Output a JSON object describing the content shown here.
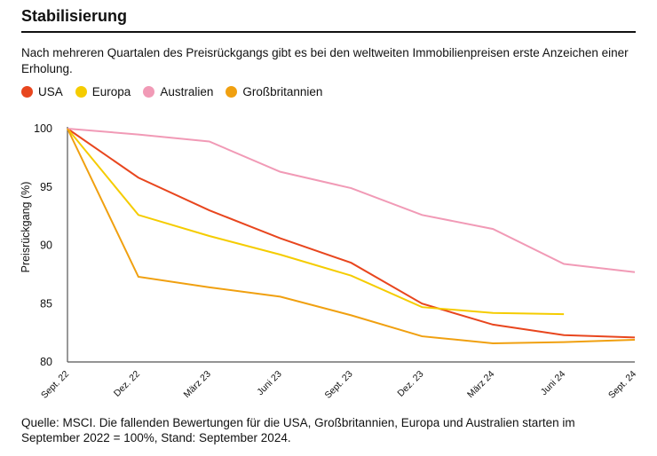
{
  "title": "Stabilisierung",
  "subtitle": "Nach mehreren Quartalen des Preisrückgangs gibt es bei den weltweiten Immobilienpreisen erste Anzeichen einer Erholung.",
  "source": "Quelle: MSCI. Die fallenden Bewertungen für die USA, Großbritannien, Europa und Australien starten im September 2022 = 100%, Stand: September 2024.",
  "chart_data": {
    "type": "line",
    "title": "Stabilisierung",
    "xlabel": "",
    "ylabel": "Preisrückgang (%)",
    "ylim": [
      80,
      100
    ],
    "yticks": [
      "80",
      "85",
      "90",
      "95",
      "100"
    ],
    "grid": false,
    "legend": "top-left",
    "categories": [
      "Sept. 22",
      "Dez. 22",
      "März 23",
      "Juni 23",
      "Sept. 23",
      "Dez. 23",
      "März 24",
      "Juni 24",
      "Sept. 24"
    ],
    "series": [
      {
        "name": "USA",
        "color": "#e8461e",
        "values": [
          100,
          95.8,
          93.0,
          90.6,
          88.5,
          85.0,
          83.2,
          82.3,
          82.1
        ]
      },
      {
        "name": "Europa",
        "color": "#f5cc00",
        "values": [
          100,
          92.6,
          90.8,
          89.2,
          87.4,
          84.7,
          84.2,
          84.1,
          null
        ]
      },
      {
        "name": "Australien",
        "color": "#f19ab6",
        "values": [
          100,
          99.5,
          98.9,
          96.3,
          94.9,
          92.6,
          91.4,
          88.4,
          87.7
        ]
      },
      {
        "name": "Großbritannien",
        "color": "#f0a010",
        "values": [
          100,
          87.3,
          86.4,
          85.6,
          84.0,
          82.2,
          81.6,
          81.7,
          81.9
        ]
      }
    ]
  }
}
